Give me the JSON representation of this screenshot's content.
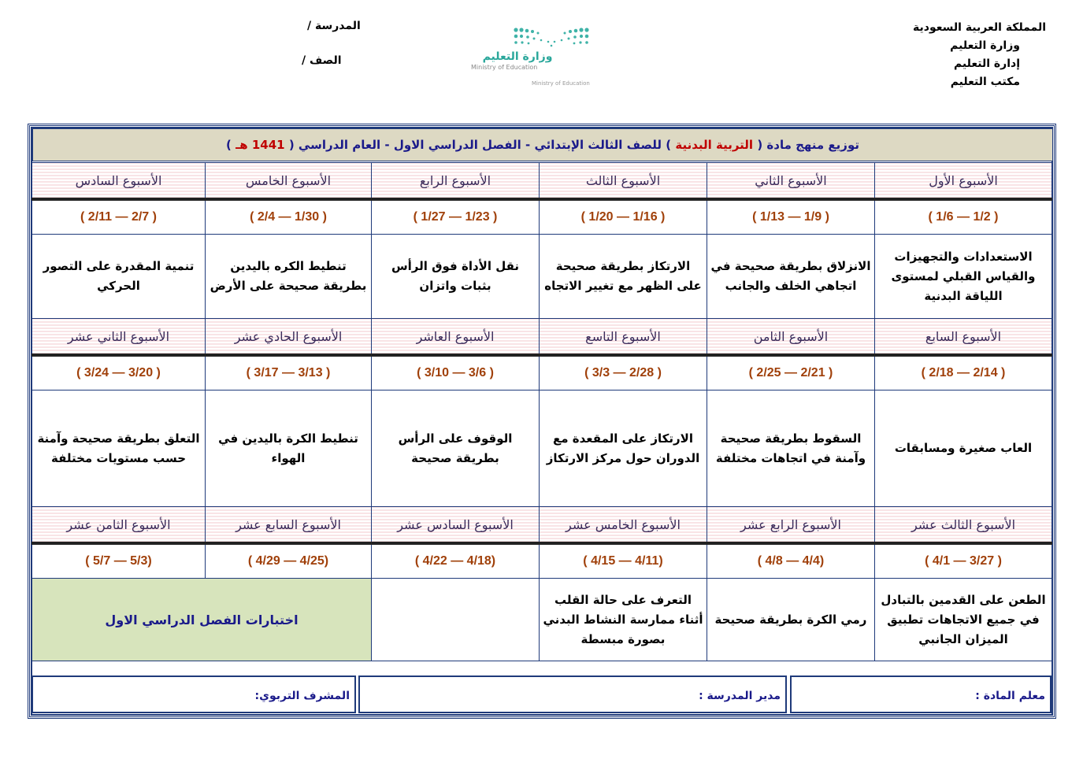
{
  "header_right": [
    "المملكة العربية السعودية",
    "وزارة التعليم",
    "إدارة التعليم",
    "مكتب التعليم"
  ],
  "header_left": {
    "school": "المدرسة /",
    "grade": "الصف /"
  },
  "logo": {
    "ar": "وزارة التعليم",
    "en": "Ministry of Education"
  },
  "title": {
    "prefix": "توزيع منهج مادة  (",
    "subject": "التربية البدنية",
    "middle": ")  للصف الثالث الإبتدائي  -  الفصل الدراسي الاول  -  العام الدراسي  (",
    "year": "1441 هـ",
    "suffix": ")"
  },
  "blocks": [
    {
      "weeks": [
        "الأسبوع الأول",
        "الأسبوع الثاني",
        "الأسبوع الثالث",
        "الأسبوع الرابع",
        "الأسبوع الخامس",
        "الأسبوع السادس"
      ],
      "dates": [
        "( 1/6 — 1/2 )",
        "( 1/13 — 1/9 )",
        "( 1/20 — 1/16 )",
        "( 1/27 — 1/23 )",
        "( 2/4 — 1/30 )",
        "( 2/11 — 2/7 )"
      ],
      "content": [
        "الاستعدادات والتجهيزات والقياس القبلي لمستوى اللياقة البدنية",
        "الانزلاق بطريقة صحيحة في اتجاهي الخلف والجانب",
        "الارتكاز بطريقة صحيحة على الظهر مع تغيير الاتجاه",
        "نقل الأداة فوق الرأس بثبات واتزان",
        "تنطيط الكره باليدين بطريقة صحيحة على الأرض",
        "تنمية المقدرة على التصور الحركي"
      ]
    },
    {
      "weeks": [
        "الأسبوع السابع",
        "الأسبوع الثامن",
        "الأسبوع التاسع",
        "الأسبوع العاشر",
        "الأسبوع الحادي عشر",
        "الأسبوع الثاني عشر"
      ],
      "dates": [
        "( 2/18 — 2/14 )",
        "( 2/25 — 2/21 )",
        "( 3/3 — 2/28 )",
        "( 3/10 — 3/6 )",
        "( 3/17 — 3/13 )",
        "( 3/24 — 3/20 )"
      ],
      "content": [
        "العاب صغيرة ومسابقات",
        "السقوط بطريقة صحيحة وآمنة في اتجاهات مختلفة",
        "الارتكاز على المقعدة مع الدوران حول مركز الارتكاز",
        "الوقوف على الرأس بطريقة صحيحة",
        "تنطيط الكرة باليدين في الهواء",
        "التعلق بطريقة صحيحة وآمنة حسب مستويات مختلفة"
      ]
    },
    {
      "weeks": [
        "الأسبوع الثالث عشر",
        "الأسبوع الرابع عشر",
        "الأسبوع الخامس عشر",
        "الأسبوع السادس عشر",
        "الأسبوع السابع عشر",
        "الأسبوع الثامن عشر"
      ],
      "dates": [
        "( 4/1 — 3/27 )",
        "( 4/8 — 4/4)",
        "( 4/15 — 4/11)",
        "( 4/22 — 4/18)",
        "( 4/29 — 4/25)",
        "( 5/7 — 5/3)"
      ],
      "content": [
        "الطعن على القدمين بالتبادل في جميع الاتجاهات تطبيق الميزان الجانبي",
        "رمي الكرة بطريقة صحيحة",
        "التعرف على حالة القلب أثناء ممارسة النشاط البدني بصورة مبسطة",
        ""
      ],
      "exam": "اختبارات الفصل الدراسي الاول"
    }
  ],
  "footer": {
    "teacher": "معلم المادة :",
    "principal": "مدير المدرسة :",
    "supervisor": "المشرف التربوي:"
  }
}
